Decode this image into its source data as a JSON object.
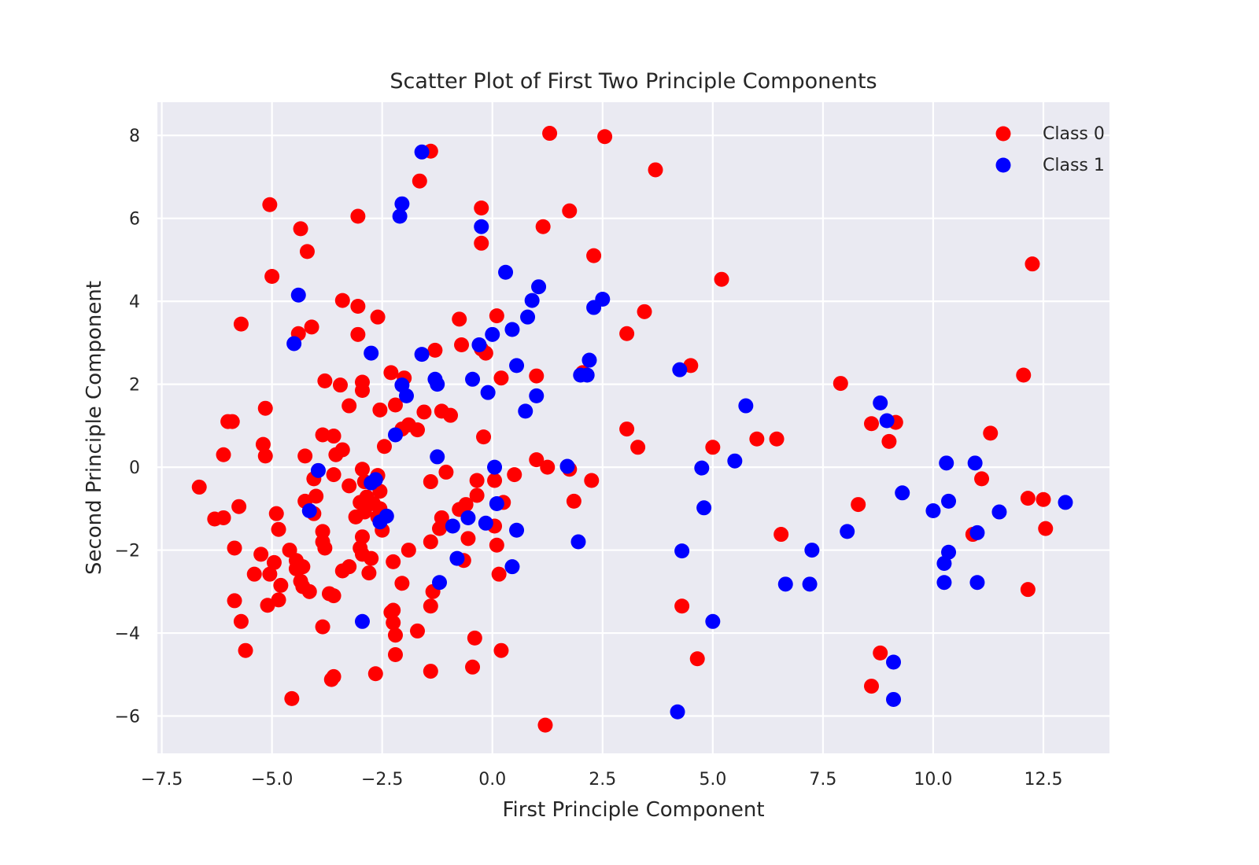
{
  "chart_data": {
    "type": "scatter",
    "title": "Scatter Plot of First Two Principle Components",
    "xlabel": "First Principle Component",
    "ylabel": "Second Principle Component",
    "xlim": [
      -7.6,
      14.0
    ],
    "ylim": [
      -6.9,
      8.8
    ],
    "xticks": [
      -7.5,
      -5.0,
      -2.5,
      0.0,
      2.5,
      5.0,
      7.5,
      10.0,
      12.5
    ],
    "xtick_labels": [
      "−7.5",
      "−5.0",
      "−2.5",
      "0.0",
      "2.5",
      "5.0",
      "7.5",
      "10.0",
      "12.5"
    ],
    "yticks": [
      -6,
      -4,
      -2,
      0,
      2,
      4,
      6,
      8
    ],
    "ytick_labels": [
      "−6",
      "−4",
      "−2",
      "0",
      "2",
      "4",
      "6",
      "8"
    ],
    "grid": true,
    "background": "#EAEAF2",
    "legend_position": "upper-right",
    "series": [
      {
        "name": "Class 0",
        "color": "#FF0000",
        "points": [
          [
            1.3,
            8.05
          ],
          [
            2.55,
            7.97
          ],
          [
            -1.4,
            7.62
          ],
          [
            3.7,
            7.17
          ],
          [
            -1.65,
            6.9
          ],
          [
            -5.05,
            6.33
          ],
          [
            -0.25,
            6.25
          ],
          [
            -3.05,
            6.05
          ],
          [
            1.75,
            6.18
          ],
          [
            -4.35,
            5.75
          ],
          [
            1.15,
            5.8
          ],
          [
            -0.25,
            5.4
          ],
          [
            -4.2,
            5.2
          ],
          [
            2.3,
            5.1
          ],
          [
            -5.0,
            4.6
          ],
          [
            5.2,
            4.53
          ],
          [
            12.25,
            4.9
          ],
          [
            -3.4,
            4.02
          ],
          [
            -3.05,
            3.88
          ],
          [
            3.45,
            3.75
          ],
          [
            0.1,
            3.65
          ],
          [
            -0.75,
            3.57
          ],
          [
            -5.7,
            3.45
          ],
          [
            -2.6,
            3.62
          ],
          [
            -4.1,
            3.38
          ],
          [
            -4.4,
            3.22
          ],
          [
            -3.05,
            3.2
          ],
          [
            3.05,
            3.22
          ],
          [
            -1.3,
            2.82
          ],
          [
            -0.7,
            2.95
          ],
          [
            -0.15,
            2.75
          ],
          [
            -0.25,
            2.85
          ],
          [
            4.5,
            2.45
          ],
          [
            12.05,
            2.22
          ],
          [
            7.9,
            2.02
          ],
          [
            -2.3,
            2.28
          ],
          [
            -2.0,
            2.15
          ],
          [
            2.05,
            2.28
          ],
          [
            1.0,
            2.2
          ],
          [
            0.2,
            2.15
          ],
          [
            -3.8,
            2.08
          ],
          [
            -3.45,
            1.98
          ],
          [
            -2.95,
            2.05
          ],
          [
            -2.95,
            1.85
          ],
          [
            -2.2,
            1.5
          ],
          [
            -2.55,
            1.38
          ],
          [
            -3.25,
            1.48
          ],
          [
            -5.15,
            1.42
          ],
          [
            -1.55,
            1.33
          ],
          [
            -1.15,
            1.35
          ],
          [
            -0.95,
            1.25
          ],
          [
            -5.9,
            1.1
          ],
          [
            -6.0,
            1.1
          ],
          [
            -2.05,
            0.92
          ],
          [
            -1.9,
            1.02
          ],
          [
            -1.7,
            0.9
          ],
          [
            -3.85,
            0.78
          ],
          [
            -3.6,
            0.75
          ],
          [
            -0.2,
            0.73
          ],
          [
            3.05,
            0.92
          ],
          [
            3.3,
            0.48
          ],
          [
            6.0,
            0.68
          ],
          [
            6.45,
            0.68
          ],
          [
            5.0,
            0.48
          ],
          [
            8.6,
            1.05
          ],
          [
            9.15,
            1.08
          ],
          [
            9.0,
            0.62
          ],
          [
            11.3,
            0.82
          ],
          [
            -5.2,
            0.55
          ],
          [
            -5.15,
            0.27
          ],
          [
            -6.1,
            0.3
          ],
          [
            -4.25,
            0.27
          ],
          [
            -3.55,
            0.3
          ],
          [
            -3.4,
            0.42
          ],
          [
            -2.45,
            0.5
          ],
          [
            1.0,
            0.18
          ],
          [
            1.25,
            0.0
          ],
          [
            1.75,
            -0.05
          ],
          [
            -2.95,
            -0.05
          ],
          [
            -2.6,
            -0.2
          ],
          [
            -0.35,
            -0.32
          ],
          [
            0.05,
            -0.32
          ],
          [
            -1.05,
            -0.12
          ],
          [
            -1.4,
            -0.35
          ],
          [
            0.5,
            -0.18
          ],
          [
            -6.65,
            -0.48
          ],
          [
            -4.05,
            -0.28
          ],
          [
            -3.6,
            -0.18
          ],
          [
            -3.25,
            -0.45
          ],
          [
            -2.9,
            -0.35
          ],
          [
            -2.55,
            -0.58
          ],
          [
            -4.0,
            -0.7
          ],
          [
            -4.25,
            -0.82
          ],
          [
            -2.7,
            -0.88
          ],
          [
            -3.0,
            -0.85
          ],
          [
            -2.85,
            -0.72
          ],
          [
            -5.75,
            -0.95
          ],
          [
            -0.35,
            -0.68
          ],
          [
            -0.6,
            -0.9
          ],
          [
            -0.75,
            -1.02
          ],
          [
            0.25,
            -0.85
          ],
          [
            1.85,
            -0.82
          ],
          [
            2.25,
            -0.32
          ],
          [
            -6.3,
            -1.25
          ],
          [
            -6.1,
            -1.22
          ],
          [
            -4.9,
            -1.12
          ],
          [
            -4.05,
            -1.12
          ],
          [
            -3.1,
            -1.2
          ],
          [
            -2.9,
            -1.08
          ],
          [
            -2.55,
            -1.0
          ],
          [
            -2.6,
            -1.2
          ],
          [
            -1.15,
            -1.22
          ],
          [
            -1.2,
            -1.48
          ],
          [
            0.05,
            -1.42
          ],
          [
            -4.85,
            -1.5
          ],
          [
            -2.5,
            -1.52
          ],
          [
            -3.85,
            -1.55
          ],
          [
            -3.85,
            -1.8
          ],
          [
            -2.95,
            -1.68
          ],
          [
            -1.4,
            -1.8
          ],
          [
            -0.55,
            -1.72
          ],
          [
            0.1,
            -1.88
          ],
          [
            -5.85,
            -1.95
          ],
          [
            -3.8,
            -1.95
          ],
          [
            -4.6,
            -2.0
          ],
          [
            -3.0,
            -1.95
          ],
          [
            -2.95,
            -2.1
          ],
          [
            -2.75,
            -2.2
          ],
          [
            -5.25,
            -2.1
          ],
          [
            -4.45,
            -2.25
          ],
          [
            -2.25,
            -2.28
          ],
          [
            -1.9,
            -2.0
          ],
          [
            -0.65,
            -2.25
          ],
          [
            0.15,
            -2.58
          ],
          [
            -4.95,
            -2.3
          ],
          [
            -5.4,
            -2.58
          ],
          [
            -5.05,
            -2.58
          ],
          [
            -4.3,
            -2.4
          ],
          [
            -4.45,
            -2.45
          ],
          [
            -3.4,
            -2.5
          ],
          [
            -3.25,
            -2.4
          ],
          [
            -2.8,
            -2.55
          ],
          [
            -4.8,
            -2.85
          ],
          [
            -4.35,
            -2.75
          ],
          [
            -4.3,
            -2.88
          ],
          [
            -4.15,
            -3.0
          ],
          [
            -3.7,
            -3.05
          ],
          [
            -3.6,
            -3.1
          ],
          [
            -2.05,
            -2.8
          ],
          [
            -1.35,
            -3.0
          ],
          [
            -5.85,
            -3.22
          ],
          [
            -4.85,
            -3.2
          ],
          [
            -5.1,
            -3.33
          ],
          [
            -1.4,
            -3.35
          ],
          [
            -2.3,
            -3.5
          ],
          [
            -2.25,
            -3.45
          ],
          [
            -2.25,
            -3.75
          ],
          [
            -5.7,
            -3.72
          ],
          [
            -3.85,
            -3.85
          ],
          [
            -1.7,
            -3.95
          ],
          [
            -2.2,
            -4.05
          ],
          [
            -0.4,
            -4.12
          ],
          [
            0.2,
            -4.42
          ],
          [
            -5.6,
            -4.42
          ],
          [
            -2.2,
            -4.52
          ],
          [
            -0.45,
            -4.82
          ],
          [
            -1.4,
            -4.92
          ],
          [
            -3.6,
            -5.05
          ],
          [
            -3.65,
            -5.12
          ],
          [
            -2.65,
            -4.98
          ],
          [
            -4.55,
            -5.58
          ],
          [
            1.2,
            -6.22
          ],
          [
            6.55,
            -1.62
          ],
          [
            8.3,
            -0.9
          ],
          [
            4.3,
            -3.35
          ],
          [
            4.65,
            -4.62
          ],
          [
            8.8,
            -4.48
          ],
          [
            8.6,
            -5.28
          ],
          [
            10.9,
            -1.62
          ],
          [
            11.1,
            -0.28
          ],
          [
            12.15,
            -0.75
          ],
          [
            12.5,
            -0.78
          ],
          [
            12.55,
            -1.48
          ],
          [
            12.15,
            -2.95
          ]
        ]
      },
      {
        "name": "Class 1",
        "color": "#0000FF",
        "points": [
          [
            -1.6,
            7.6
          ],
          [
            -2.05,
            6.35
          ],
          [
            -2.1,
            6.05
          ],
          [
            -0.25,
            5.8
          ],
          [
            0.3,
            4.7
          ],
          [
            1.05,
            4.35
          ],
          [
            2.5,
            4.05
          ],
          [
            0.9,
            4.02
          ],
          [
            2.3,
            3.85
          ],
          [
            0.8,
            3.62
          ],
          [
            0.45,
            3.32
          ],
          [
            0.0,
            3.2
          ],
          [
            -0.3,
            2.95
          ],
          [
            -1.6,
            2.72
          ],
          [
            -2.75,
            2.75
          ],
          [
            2.2,
            2.58
          ],
          [
            0.55,
            2.45
          ],
          [
            -4.4,
            4.15
          ],
          [
            -4.5,
            2.98
          ],
          [
            4.25,
            2.35
          ],
          [
            2.0,
            2.22
          ],
          [
            2.15,
            2.22
          ],
          [
            -1.3,
            2.12
          ],
          [
            -1.25,
            2.0
          ],
          [
            -0.45,
            2.12
          ],
          [
            -0.1,
            1.8
          ],
          [
            -2.05,
            1.98
          ],
          [
            -1.95,
            1.72
          ],
          [
            1.0,
            1.72
          ],
          [
            0.75,
            1.35
          ],
          [
            5.75,
            1.48
          ],
          [
            8.8,
            1.55
          ],
          [
            8.95,
            1.12
          ],
          [
            -2.2,
            0.78
          ],
          [
            -1.25,
            0.25
          ],
          [
            0.05,
            0.0
          ],
          [
            1.7,
            0.02
          ],
          [
            5.5,
            0.15
          ],
          [
            4.75,
            -0.02
          ],
          [
            -3.95,
            -0.08
          ],
          [
            -2.65,
            -0.3
          ],
          [
            -2.75,
            -0.38
          ],
          [
            0.1,
            -0.88
          ],
          [
            -4.15,
            -1.05
          ],
          [
            -2.4,
            -1.18
          ],
          [
            -2.55,
            -1.32
          ],
          [
            -0.55,
            -1.22
          ],
          [
            -0.9,
            -1.42
          ],
          [
            -0.15,
            -1.35
          ],
          [
            0.55,
            -1.52
          ],
          [
            4.8,
            -0.98
          ],
          [
            1.95,
            -1.8
          ],
          [
            -0.8,
            -2.2
          ],
          [
            0.45,
            -2.4
          ],
          [
            -1.2,
            -2.78
          ],
          [
            -2.95,
            -3.72
          ],
          [
            4.3,
            -2.02
          ],
          [
            5.0,
            -3.72
          ],
          [
            4.2,
            -5.9
          ],
          [
            8.05,
            -1.55
          ],
          [
            7.25,
            -2.0
          ],
          [
            6.65,
            -2.82
          ],
          [
            7.2,
            -2.82
          ],
          [
            9.3,
            -0.62
          ],
          [
            10.3,
            0.1
          ],
          [
            10.95,
            0.1
          ],
          [
            10.0,
            -1.05
          ],
          [
            10.35,
            -0.82
          ],
          [
            11.5,
            -1.08
          ],
          [
            11.0,
            -1.58
          ],
          [
            10.35,
            -2.05
          ],
          [
            10.25,
            -2.32
          ],
          [
            10.25,
            -2.78
          ],
          [
            11.0,
            -2.78
          ],
          [
            13.0,
            -0.85
          ],
          [
            9.1,
            -4.7
          ],
          [
            9.1,
            -5.6
          ]
        ]
      }
    ]
  }
}
